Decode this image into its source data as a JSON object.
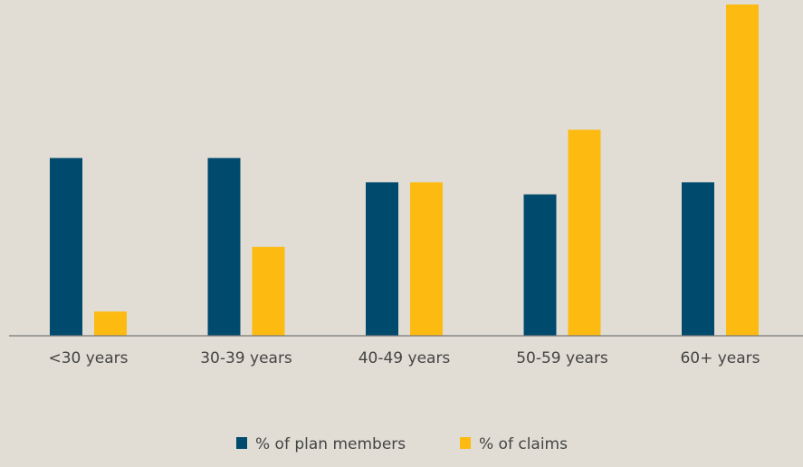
{
  "chart_data": {
    "type": "bar",
    "categories": [
      "<30 years",
      "30-39 years",
      "40-49 years",
      "50-59 years",
      "60+ years"
    ],
    "series": [
      {
        "name": "% of plan members",
        "color": "#004a6e",
        "values": [
          22,
          22,
          19,
          17.5,
          19
        ]
      },
      {
        "name": "% of claims",
        "color": "#fdbb12",
        "values": [
          3,
          11,
          19,
          25.5,
          41
        ]
      }
    ],
    "ylim": [
      0,
      41
    ],
    "grid": false,
    "legend": "bottom"
  }
}
